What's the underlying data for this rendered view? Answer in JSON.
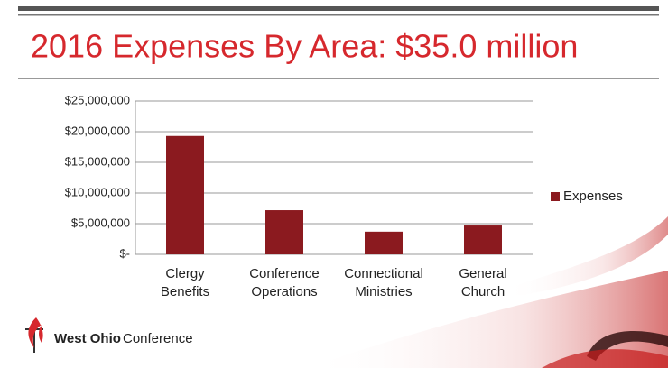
{
  "chart_data": {
    "type": "bar",
    "title": "2016 Expenses By Area: $35.0 million",
    "categories": [
      "Clergy Benefits",
      "Conference Operations",
      "Connectional Ministries",
      "General Church"
    ],
    "series": [
      {
        "name": "Expenses",
        "color": "#8b1a1f",
        "values": [
          19300000,
          7200000,
          3700000,
          4700000
        ]
      }
    ],
    "ylim": [
      0,
      25000000
    ],
    "yticks": [
      {
        "value": 0,
        "label": "$-"
      },
      {
        "value": 5000000,
        "label": "$5,000,000"
      },
      {
        "value": 10000000,
        "label": "$10,000,000"
      },
      {
        "value": 15000000,
        "label": "$15,000,000"
      },
      {
        "value": 20000000,
        "label": "$20,000,000"
      },
      {
        "value": 25000000,
        "label": "$25,000,000"
      }
    ],
    "grid": true,
    "legend": "right"
  },
  "footer": {
    "organization": "West Ohio",
    "suffix": "Conference"
  }
}
